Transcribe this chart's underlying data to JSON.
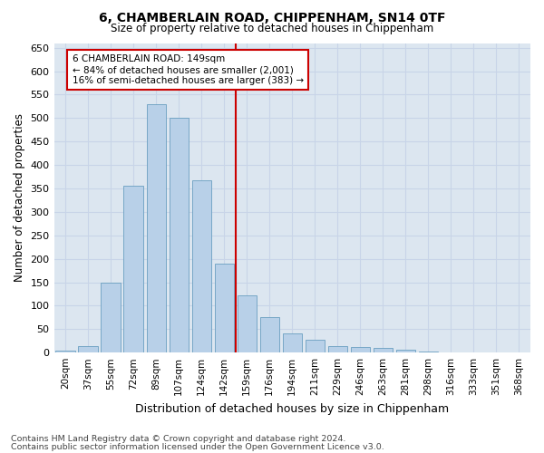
{
  "title": "6, CHAMBERLAIN ROAD, CHIPPENHAM, SN14 0TF",
  "subtitle": "Size of property relative to detached houses in Chippenham",
  "xlabel": "Distribution of detached houses by size in Chippenham",
  "ylabel": "Number of detached properties",
  "categories": [
    "20sqm",
    "37sqm",
    "55sqm",
    "72sqm",
    "89sqm",
    "107sqm",
    "124sqm",
    "142sqm",
    "159sqm",
    "176sqm",
    "194sqm",
    "211sqm",
    "229sqm",
    "246sqm",
    "263sqm",
    "281sqm",
    "298sqm",
    "316sqm",
    "333sqm",
    "351sqm",
    "368sqm"
  ],
  "values": [
    5,
    13,
    150,
    355,
    530,
    500,
    368,
    190,
    123,
    75,
    40,
    27,
    13,
    12,
    10,
    7,
    2,
    1,
    0,
    0,
    0
  ],
  "bar_color": "#b8d0e8",
  "bar_edge_color": "#6a9fc0",
  "vline_x": 7.5,
  "vline_color": "#cc0000",
  "annotation_text": "6 CHAMBERLAIN ROAD: 149sqm\n← 84% of detached houses are smaller (2,001)\n16% of semi-detached houses are larger (383) →",
  "annotation_box_color": "#ffffff",
  "annotation_box_edge_color": "#cc0000",
  "ylim": [
    0,
    660
  ],
  "yticks": [
    0,
    50,
    100,
    150,
    200,
    250,
    300,
    350,
    400,
    450,
    500,
    550,
    600,
    650
  ],
  "grid_color": "#c8d4e8",
  "plot_bg_color": "#dce6f0",
  "fig_bg_color": "#ffffff",
  "footer_line1": "Contains HM Land Registry data © Crown copyright and database right 2024.",
  "footer_line2": "Contains public sector information licensed under the Open Government Licence v3.0."
}
